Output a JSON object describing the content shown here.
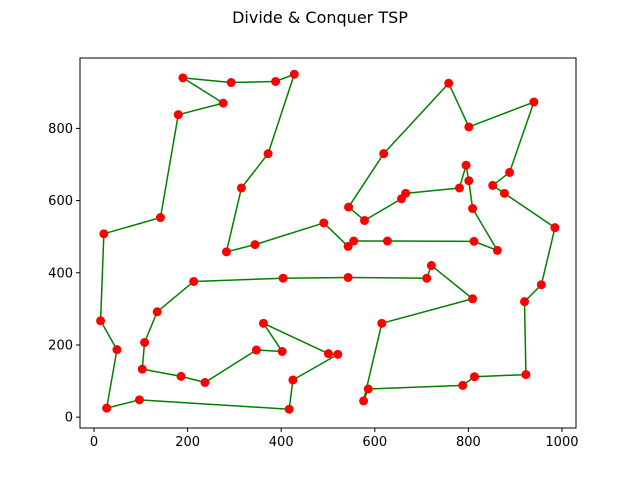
{
  "chart_data": {
    "type": "line",
    "title": "Divide & Conquer TSP",
    "xlabel": "",
    "ylabel": "",
    "xlim": [
      -30,
      1030
    ],
    "ylim": [
      -30,
      995
    ],
    "xticks": [
      0,
      200,
      400,
      600,
      800,
      1000
    ],
    "yticks": [
      0,
      200,
      400,
      600,
      800
    ],
    "grid": false,
    "legend": "none",
    "line_color": "#008000",
    "marker_color": "#ff0000",
    "route": [
      [
        190,
        940
      ],
      [
        293,
        927
      ],
      [
        388,
        930
      ],
      [
        428,
        950
      ],
      [
        372,
        730
      ],
      [
        315,
        635
      ],
      [
        283,
        458
      ],
      [
        344,
        478
      ],
      [
        491,
        538
      ],
      [
        543,
        473
      ],
      [
        555,
        488
      ],
      [
        627,
        488
      ],
      [
        812,
        487
      ],
      [
        862,
        462
      ],
      [
        809,
        578
      ],
      [
        801,
        655
      ],
      [
        795,
        698
      ],
      [
        781,
        635
      ],
      [
        666,
        620
      ],
      [
        657,
        605
      ],
      [
        578,
        545
      ],
      [
        544,
        582
      ],
      [
        619,
        730
      ],
      [
        758,
        925
      ],
      [
        801,
        804
      ],
      [
        940,
        873
      ],
      [
        888,
        678
      ],
      [
        852,
        642
      ],
      [
        877,
        620
      ],
      [
        985,
        525
      ],
      [
        956,
        367
      ],
      [
        920,
        320
      ],
      [
        923,
        118
      ],
      [
        813,
        112
      ],
      [
        788,
        88
      ],
      [
        586,
        78
      ],
      [
        576,
        45
      ],
      [
        615,
        260
      ],
      [
        809,
        328
      ],
      [
        721,
        420
      ],
      [
        711,
        385
      ],
      [
        543,
        387
      ],
      [
        404,
        385
      ],
      [
        213,
        376
      ],
      [
        135,
        292
      ],
      [
        108,
        207
      ],
      [
        103,
        133
      ],
      [
        186,
        113
      ],
      [
        237,
        96
      ],
      [
        347,
        186
      ],
      [
        402,
        182
      ],
      [
        362,
        260
      ],
      [
        501,
        176
      ],
      [
        521,
        174
      ],
      [
        425,
        103
      ],
      [
        417,
        22
      ],
      [
        97,
        48
      ],
      [
        27,
        25
      ],
      [
        49,
        187
      ],
      [
        14,
        267
      ],
      [
        21,
        508
      ],
      [
        142,
        553
      ],
      [
        180,
        838
      ],
      [
        276,
        870
      ],
      [
        190,
        940
      ]
    ]
  }
}
